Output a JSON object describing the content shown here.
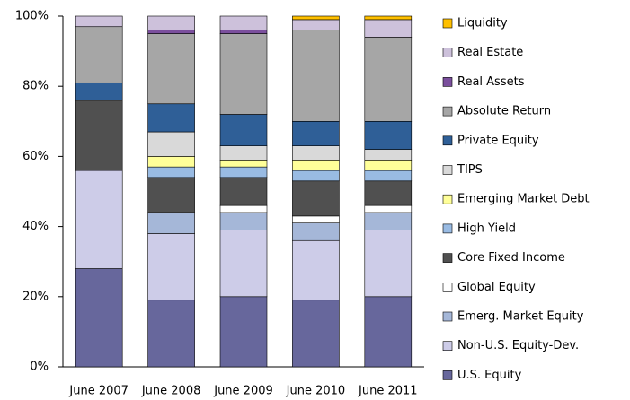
{
  "chart_data": {
    "type": "stacked_bar",
    "categories": [
      "June 2007",
      "June 2008",
      "June 2009",
      "June 2010",
      "June 2011"
    ],
    "series": [
      {
        "name": "U.S. Equity",
        "color": "#67679c",
        "values": [
          28,
          19,
          20,
          19,
          20
        ]
      },
      {
        "name": "Non-U.S. Equity-Dev.",
        "color": "#cdcce8",
        "values": [
          28,
          19,
          19,
          17,
          19
        ]
      },
      {
        "name": "Emerg. Market Equity",
        "color": "#a5b7d8",
        "values": [
          0,
          6,
          5,
          5,
          5
        ]
      },
      {
        "name": "Global Equity",
        "color": "#ffffff",
        "values": [
          0,
          0,
          2,
          2,
          2
        ]
      },
      {
        "name": "Core Fixed Income",
        "color": "#505050",
        "values": [
          20,
          10,
          8,
          10,
          7
        ]
      },
      {
        "name": "High Yield",
        "color": "#99bbe3",
        "values": [
          0,
          3,
          3,
          3,
          3
        ]
      },
      {
        "name": "Emerging Market Debt",
        "color": "#ffff99",
        "values": [
          0,
          3,
          2,
          3,
          3
        ]
      },
      {
        "name": "TIPS",
        "color": "#d9d9d9",
        "values": [
          0,
          7,
          4,
          4,
          3
        ]
      },
      {
        "name": "Private Equity",
        "color": "#2f5f97",
        "values": [
          5,
          8,
          9,
          7,
          8
        ]
      },
      {
        "name": "Absolute Return",
        "color": "#a6a6a6",
        "values": [
          16,
          20,
          23,
          26,
          24
        ]
      },
      {
        "name": "Real Assets",
        "color": "#7b4f9d",
        "values": [
          0,
          1,
          1,
          0,
          0
        ]
      },
      {
        "name": "Real Estate",
        "color": "#cdc1db",
        "values": [
          3,
          4,
          4,
          3,
          5
        ]
      },
      {
        "name": "Liquidity",
        "color": "#ffc000",
        "values": [
          0,
          0,
          0,
          1,
          1
        ]
      }
    ],
    "ylim": [
      0,
      100
    ],
    "yticks": [
      {
        "value": 0,
        "label": "0%"
      },
      {
        "value": 20,
        "label": "20%"
      },
      {
        "value": 40,
        "label": "40%"
      },
      {
        "value": 60,
        "label": "60%"
      },
      {
        "value": 80,
        "label": "80%"
      },
      {
        "value": 100,
        "label": "100%"
      }
    ]
  }
}
